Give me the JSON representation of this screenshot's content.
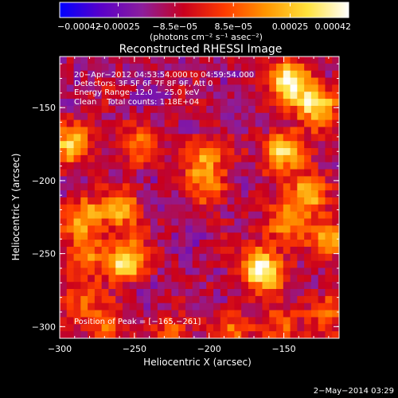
{
  "chart_data": {
    "type": "heatmap",
    "title": "Reconstructed RHESSI Image",
    "xlabel": "Heliocentric X (arcsec)",
    "ylabel": "Heliocentric Y (arcsec)",
    "xlim": [
      -300,
      -113
    ],
    "ylim": [
      -308,
      -115
    ],
    "xticks": [
      -300,
      -250,
      -200,
      -150
    ],
    "xtick_labels": [
      "−300",
      "−250",
      "−200",
      "−150"
    ],
    "yticks": [
      -150,
      -200,
      -250,
      -300
    ],
    "ytick_labels": [
      "−150",
      "−200",
      "−250",
      "−300"
    ],
    "colorbar": {
      "min": -0.00042,
      "max": 0.00042,
      "ticks": [
        -0.00042,
        -0.00025,
        -8.5e-05,
        8.5e-05,
        0.00025,
        0.00042
      ],
      "tick_labels": [
        "−0.00042",
        "−0.00025",
        "−8.5e−05",
        "8.5e−05",
        "0.00025",
        "0.00042"
      ],
      "unit_label": "(photons cm⁻² s⁻¹ asec⁻²)",
      "colormap": [
        "#0000ff",
        "#5a00c8",
        "#8c1e9c",
        "#c8001e",
        "#ff3c00",
        "#ff9600",
        "#ffe23c",
        "#ffffff"
      ]
    },
    "annotations": [
      "20−Apr−2012 04:53:54.000 to 04:59:54.000",
      "Detectors: 3F 5F 6F 7F 8F 9F, Att 0",
      "Energy Range: 12.0 − 25.0 keV",
      "Clean    Total counts: 1.18E+04"
    ],
    "peak_label": "Position of Peak = [−165,−261]",
    "peak": [
      -165,
      -261
    ],
    "sources": [
      {
        "x": -165,
        "y": -261,
        "intensity": 0.00042
      },
      {
        "x": -146,
        "y": -132,
        "intensity": 0.00036
      },
      {
        "x": -128,
        "y": -148,
        "intensity": 0.00034
      },
      {
        "x": -150,
        "y": -180,
        "intensity": 0.00032
      },
      {
        "x": -255,
        "y": -255,
        "intensity": 0.00033
      },
      {
        "x": -133,
        "y": -210,
        "intensity": 0.00026
      },
      {
        "x": -292,
        "y": -175,
        "intensity": 0.00024
      },
      {
        "x": -285,
        "y": -225,
        "intensity": 0.00022
      },
      {
        "x": -258,
        "y": -220,
        "intensity": 0.00018
      },
      {
        "x": -205,
        "y": -185,
        "intensity": 0.00017
      },
      {
        "x": -150,
        "y": -230,
        "intensity": 0.00016
      },
      {
        "x": -120,
        "y": -240,
        "intensity": 0.00015
      },
      {
        "x": -198,
        "y": -205,
        "intensity": 0.00011
      },
      {
        "x": -280,
        "y": -250,
        "intensity": 0.00011
      },
      {
        "x": -270,
        "y": -298,
        "intensity": 0.00012
      },
      {
        "x": -250,
        "y": -175,
        "intensity": 0.0001
      },
      {
        "x": -120,
        "y": -290,
        "intensity": 0.00012
      },
      {
        "x": -152,
        "y": -300,
        "intensity": 9e-05
      },
      {
        "x": -290,
        "y": -280,
        "intensity": 9e-05
      },
      {
        "x": -225,
        "y": -305,
        "intensity": 7e-05
      },
      {
        "x": -185,
        "y": -300,
        "intensity": 6e-05
      }
    ],
    "background_level": -0.00012
  },
  "footer": {
    "timestamp": "2−May−2014 03:29"
  }
}
